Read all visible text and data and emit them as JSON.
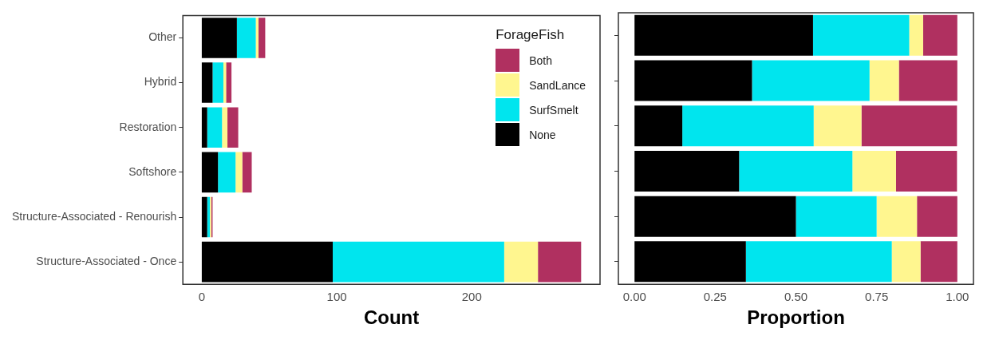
{
  "chart_data": [
    {
      "type": "bar",
      "orientation": "horizontal",
      "stacked": true,
      "xlabel": "Count",
      "legend_title": "ForageFish",
      "legend": "top right",
      "categories": [
        "Other",
        "Hybrid",
        "Restoration",
        "Softshore",
        "Structure-Associated - Renourish",
        "Structure-Associated - Once"
      ],
      "series": [
        {
          "name": "None",
          "color": "#000000",
          "values": [
            26,
            8,
            4,
            12,
            4,
            97
          ]
        },
        {
          "name": "SurfSmelt",
          "color": "#00e5ee",
          "values": [
            14,
            8,
            11,
            13,
            2,
            127
          ]
        },
        {
          "name": "SandLance",
          "color": "#fff68f",
          "values": [
            2,
            2,
            4,
            5,
            1,
            25
          ]
        },
        {
          "name": "Both",
          "color": "#b03060",
          "values": [
            5,
            4,
            8,
            7,
            1,
            32
          ]
        }
      ],
      "xlim": [
        -14,
        295
      ],
      "xticks": [
        0,
        100,
        200
      ]
    },
    {
      "type": "bar",
      "orientation": "horizontal",
      "stacked": true,
      "xlabel": "Proportion",
      "tick_labels": "x",
      "categories": [
        null,
        null,
        null,
        null,
        null,
        null
      ],
      "series": [
        {
          "color": "#000000",
          "values": [
            0.553,
            0.364,
            0.148,
            0.324,
            0.5,
            0.345
          ]
        },
        {
          "color": "#00e5ee",
          "values": [
            0.298,
            0.364,
            0.407,
            0.351,
            0.25,
            0.452
          ]
        },
        {
          "color": "#fff68f",
          "values": [
            0.043,
            0.091,
            0.148,
            0.135,
            0.125,
            0.089
          ]
        },
        {
          "color": "#b03060",
          "values": [
            0.106,
            0.181,
            0.296,
            0.189,
            0.125,
            0.114
          ]
        }
      ],
      "xlim": [
        -0.05,
        1.05
      ],
      "xticks": [
        {
          "value": 0,
          "label": "0.00"
        },
        {
          "value": 0.25,
          "label": "0.25"
        },
        {
          "value": 0.5,
          "label": "0.50"
        },
        {
          "value": 0.75,
          "label": "0.75"
        },
        {
          "value": 1,
          "label": "1.00"
        }
      ]
    }
  ]
}
